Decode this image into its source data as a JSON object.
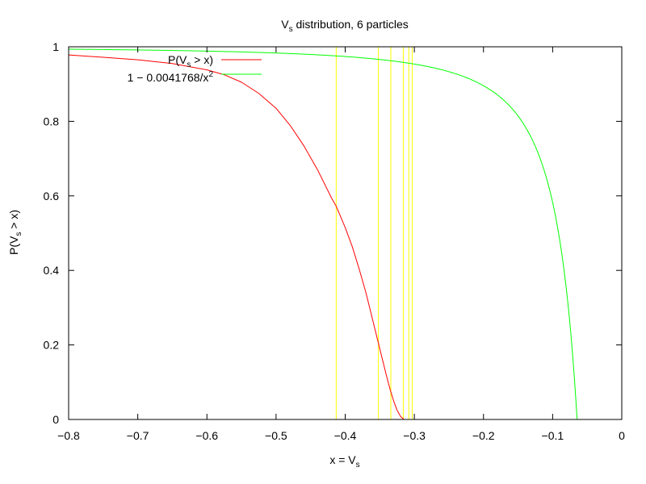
{
  "chart_data": {
    "type": "line",
    "title": {
      "main": "V",
      "sub": "s",
      "rest": " distribution, 6 particles"
    },
    "xlabel": {
      "main": "x = V",
      "sub": "s"
    },
    "ylabel": {
      "main": "P(V",
      "sub": "s",
      "rest": " > x)"
    },
    "xlim": [
      -0.8,
      0
    ],
    "ylim": [
      0,
      1
    ],
    "xticks": [
      {
        "v": -0.8,
        "label": "−0.8"
      },
      {
        "v": -0.7,
        "label": "−0.7"
      },
      {
        "v": -0.6,
        "label": "−0.6"
      },
      {
        "v": -0.5,
        "label": "−0.5"
      },
      {
        "v": -0.4,
        "label": "−0.4"
      },
      {
        "v": -0.3,
        "label": "−0.3"
      },
      {
        "v": -0.2,
        "label": "−0.2"
      },
      {
        "v": -0.1,
        "label": "−0.1"
      },
      {
        "v": 0,
        "label": "0"
      }
    ],
    "yticks": [
      {
        "v": 0,
        "label": "0"
      },
      {
        "v": 0.2,
        "label": "0.2"
      },
      {
        "v": 0.4,
        "label": "0.4"
      },
      {
        "v": 0.6,
        "label": "0.6"
      },
      {
        "v": 0.8,
        "label": "0.8"
      },
      {
        "v": 1,
        "label": "1"
      }
    ],
    "grid": false,
    "legend_position": "top-left",
    "series": [
      {
        "legend": {
          "main": "P(V",
          "sub": "s",
          "rest": " > x)"
        },
        "color": "#ff0000",
        "points": [
          [
            -0.8,
            0.978
          ],
          [
            -0.75,
            0.972
          ],
          [
            -0.7,
            0.965
          ],
          [
            -0.65,
            0.955
          ],
          [
            -0.6,
            0.938
          ],
          [
            -0.575,
            0.925
          ],
          [
            -0.55,
            0.905
          ],
          [
            -0.525,
            0.875
          ],
          [
            -0.5,
            0.835
          ],
          [
            -0.48,
            0.79
          ],
          [
            -0.46,
            0.735
          ],
          [
            -0.44,
            0.67
          ],
          [
            -0.42,
            0.595
          ],
          [
            -0.413,
            0.572
          ],
          [
            -0.4,
            0.515
          ],
          [
            -0.39,
            0.465
          ],
          [
            -0.38,
            0.405
          ],
          [
            -0.37,
            0.34
          ],
          [
            -0.36,
            0.265
          ],
          [
            -0.35,
            0.19
          ],
          [
            -0.34,
            0.115
          ],
          [
            -0.335,
            0.08
          ],
          [
            -0.33,
            0.05
          ],
          [
            -0.325,
            0.025
          ],
          [
            -0.32,
            0.008
          ],
          [
            -0.315,
            0.0
          ]
        ]
      },
      {
        "legend": {
          "main": "1 − 0.0041768/x",
          "sup": "2"
        },
        "color": "#00ff00",
        "function": {
          "a": 0.0041768,
          "xmin": -0.8,
          "xmax": -0.0646
        }
      }
    ],
    "vlines": {
      "color": "#ffff00",
      "x": [
        -0.413,
        -0.352,
        -0.334,
        -0.316,
        -0.308,
        -0.303
      ]
    }
  }
}
